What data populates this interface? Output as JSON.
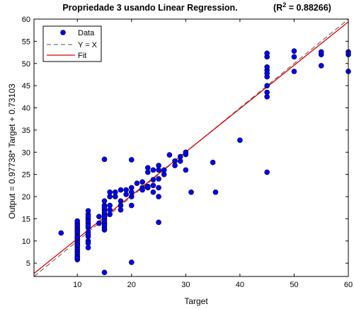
{
  "chart_data": {
    "type": "scatter",
    "title": "Propriedade 3 usando Linear Regression.",
    "r2_label": "(R",
    "r2_sup": "2",
    "r2_value": " = 0.88266)",
    "xlabel": "Target",
    "ylabel": "Output = 0.97738* Target + 0.73103",
    "xlim": [
      2,
      60
    ],
    "ylim": [
      2,
      60
    ],
    "xticks": [
      10,
      20,
      30,
      40,
      50,
      60
    ],
    "yticks": [
      5,
      10,
      15,
      20,
      25,
      30,
      35,
      40,
      45,
      50,
      55,
      60
    ],
    "grid": false,
    "legend_position": "top-left",
    "legend": [
      "Data",
      "Y = X",
      "Fit"
    ],
    "fit": {
      "slope": 0.97738,
      "intercept": 0.73103
    },
    "colors": {
      "data": "#0000ff",
      "identity": "#555555",
      "fit": "#e00000"
    },
    "series": [
      {
        "name": "Data",
        "x": [
          7,
          10,
          10,
          10,
          10,
          10,
          10,
          10,
          10,
          10,
          10,
          10,
          10,
          10,
          10,
          10,
          10,
          10,
          10,
          10,
          10,
          10,
          10,
          12,
          12,
          12,
          12,
          12,
          12,
          12,
          12,
          12,
          12,
          12,
          12,
          12,
          12,
          14,
          14,
          15,
          15,
          15,
          15,
          15,
          15,
          15,
          15,
          15,
          15,
          15,
          15,
          15,
          15,
          15,
          16,
          16,
          16,
          16,
          16,
          17,
          17,
          18,
          18,
          18,
          18,
          19,
          19,
          20,
          20,
          20,
          20,
          20,
          20,
          21,
          22,
          22,
          22,
          23,
          23,
          23,
          23,
          24,
          24,
          24,
          24,
          25,
          25,
          25,
          25,
          25,
          25,
          26,
          26,
          27,
          28,
          28,
          29,
          29,
          30,
          30,
          30,
          31,
          35,
          35.5,
          40,
          45,
          45,
          45,
          45,
          45,
          45,
          45,
          45,
          45,
          45,
          50,
          50,
          50,
          55,
          55,
          55,
          60,
          60,
          60
        ],
        "y": [
          11.8,
          5.8,
          6.5,
          7,
          7.5,
          8,
          8.5,
          9,
          9.5,
          10,
          10.5,
          11,
          11.5,
          12,
          12.5,
          13,
          13.5,
          14,
          14.5,
          9.2,
          10.8,
          12.2,
          6.2,
          8.5,
          10,
          11,
          12,
          13,
          14,
          15,
          16,
          16.8,
          14.5,
          9.5,
          11.5,
          13.5,
          15.5,
          14,
          15.5,
          2.9,
          12.5,
          13,
          14,
          15,
          16,
          17,
          18,
          19,
          17.5,
          28.4,
          16.5,
          13.5,
          14.5,
          15.5,
          16,
          17,
          18,
          20,
          21,
          20,
          21,
          21.5,
          19,
          18,
          17,
          20.5,
          21.5,
          5.2,
          18,
          20,
          21,
          22,
          28.3,
          23,
          22,
          21.5,
          23.3,
          25.5,
          26.5,
          22,
          22.3,
          22.5,
          21,
          26,
          23.8,
          14.2,
          20,
          22,
          24,
          26,
          27,
          25,
          26,
          29.4,
          28,
          27,
          29,
          28,
          29.5,
          30,
          26,
          21,
          27.7,
          21,
          32.7,
          25.5,
          42.5,
          43.5,
          48.5,
          49.2,
          51.5,
          52.3,
          45,
          47,
          47.8,
          48.2,
          51.5,
          52.8,
          49.5,
          52,
          52.6,
          48.2,
          52,
          52.6
        ]
      }
    ]
  }
}
